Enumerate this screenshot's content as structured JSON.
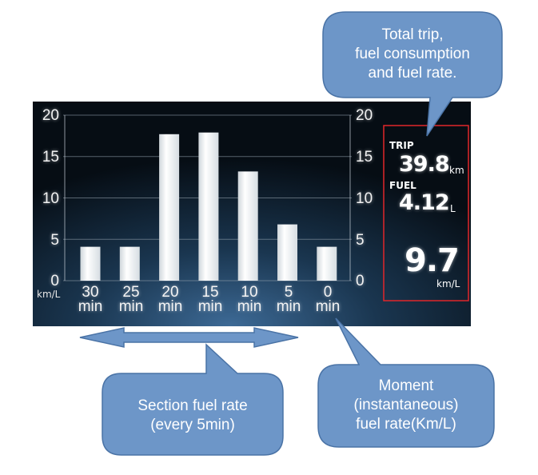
{
  "callouts": {
    "top_right": {
      "lines": [
        "Total trip,",
        "fuel consumption",
        "and fuel rate."
      ]
    },
    "bottom_left": {
      "lines": [
        "Section fuel rate",
        "(every 5min)"
      ]
    },
    "bottom_right": {
      "lines": [
        "Moment",
        "(instantaneous)",
        "fuel rate(Km/L)"
      ]
    }
  },
  "trip_panel": {
    "trip_label": "TRIP",
    "trip_value": "39.8",
    "trip_unit": "km",
    "fuel_label": "FUEL",
    "fuel_value": "4.12",
    "fuel_unit": "L",
    "rate_value": "9.7",
    "rate_unit": "km/L"
  },
  "colors": {
    "callout_fill": "#6d96c8",
    "callout_stroke": "#4a73a6",
    "dash_bg": "#0b1620",
    "highlight_box": "#e0262a"
  },
  "chart_data": {
    "type": "bar",
    "categories": [
      {
        "num": "30",
        "unit": "min"
      },
      {
        "num": "25",
        "unit": "min"
      },
      {
        "num": "20",
        "unit": "min"
      },
      {
        "num": "15",
        "unit": "min"
      },
      {
        "num": "10",
        "unit": "min"
      },
      {
        "num": "5",
        "unit": "min"
      },
      {
        "num": "0",
        "unit": "min"
      }
    ],
    "values": [
      4.1,
      4.1,
      17.7,
      17.9,
      13.2,
      6.8,
      4.1
    ],
    "ylim": [
      0,
      20
    ],
    "yticks": [
      "0",
      "5",
      "10",
      "15",
      "20"
    ],
    "ylabel": "km/L",
    "grid": true
  }
}
